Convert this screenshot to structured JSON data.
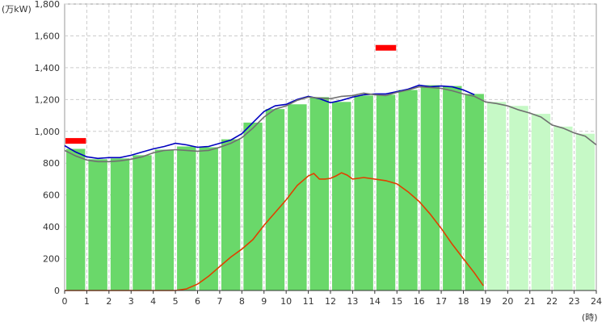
{
  "chart_data": {
    "type": "bar",
    "y_unit_label": "(万kW)",
    "x_unit_label": "(時)",
    "ylim": [
      0,
      1800
    ],
    "xlim": [
      0,
      24
    ],
    "yticks": [
      {
        "value": 0,
        "label": "0"
      },
      {
        "value": 200,
        "label": "200"
      },
      {
        "value": 400,
        "label": "400"
      },
      {
        "value": 600,
        "label": "600"
      },
      {
        "value": 800,
        "label": "800"
      },
      {
        "value": 1000,
        "label": "1,000"
      },
      {
        "value": 1200,
        "label": "1,200"
      },
      {
        "value": 1400,
        "label": "1,400"
      },
      {
        "value": 1600,
        "label": "1,600"
      },
      {
        "value": 1800,
        "label": "1,800"
      }
    ],
    "xticks": [
      "0",
      "1",
      "2",
      "3",
      "4",
      "5",
      "6",
      "7",
      "8",
      "9",
      "10",
      "11",
      "12",
      "13",
      "14",
      "15",
      "16",
      "17",
      "18",
      "19",
      "20",
      "21",
      "22",
      "23",
      "24"
    ],
    "grid": true,
    "legend": "none",
    "hourly_demand": [
      {
        "hour": 0,
        "value": 890,
        "status": "actual"
      },
      {
        "hour": 1,
        "value": 825,
        "status": "actual"
      },
      {
        "hour": 2,
        "value": 830,
        "status": "actual"
      },
      {
        "hour": 3,
        "value": 850,
        "status": "actual"
      },
      {
        "hour": 4,
        "value": 885,
        "status": "actual"
      },
      {
        "hour": 5,
        "value": 905,
        "status": "actual"
      },
      {
        "hour": 6,
        "value": 900,
        "status": "actual"
      },
      {
        "hour": 7,
        "value": 950,
        "status": "actual"
      },
      {
        "hour": 8,
        "value": 1055,
        "status": "actual"
      },
      {
        "hour": 9,
        "value": 1140,
        "status": "actual"
      },
      {
        "hour": 10,
        "value": 1170,
        "status": "actual"
      },
      {
        "hour": 11,
        "value": 1215,
        "status": "actual"
      },
      {
        "hour": 12,
        "value": 1185,
        "status": "actual"
      },
      {
        "hour": 13,
        "value": 1225,
        "status": "actual"
      },
      {
        "hour": 14,
        "value": 1230,
        "status": "actual"
      },
      {
        "hour": 15,
        "value": 1260,
        "status": "actual"
      },
      {
        "hour": 16,
        "value": 1290,
        "status": "actual"
      },
      {
        "hour": 17,
        "value": 1285,
        "status": "actual"
      },
      {
        "hour": 18,
        "value": 1235,
        "status": "actual"
      },
      {
        "hour": 19,
        "value": 1185,
        "status": "forecast"
      },
      {
        "hour": 20,
        "value": 1160,
        "status": "forecast"
      },
      {
        "hour": 21,
        "value": 1110,
        "status": "forecast"
      },
      {
        "hour": 22,
        "value": 1030,
        "status": "forecast"
      },
      {
        "hour": 23,
        "value": 985,
        "status": "forecast"
      }
    ],
    "series": [
      {
        "color": "#0000c0",
        "x": [
          0,
          0.5,
          1,
          1.5,
          2,
          2.5,
          3,
          3.5,
          4,
          4.5,
          5,
          5.5,
          6,
          6.5,
          7,
          7.5,
          8,
          8.5,
          9,
          9.5,
          10,
          10.5,
          11,
          11.5,
          12,
          12.5,
          13,
          13.5,
          14,
          14.5,
          15,
          15.5,
          16,
          16.5,
          17,
          17.5,
          18,
          18.5
        ],
        "y": [
          910,
          870,
          840,
          830,
          835,
          835,
          850,
          870,
          890,
          905,
          925,
          915,
          900,
          905,
          925,
          945,
          985,
          1055,
          1125,
          1160,
          1170,
          1200,
          1220,
          1205,
          1180,
          1195,
          1215,
          1230,
          1235,
          1235,
          1250,
          1265,
          1290,
          1280,
          1285,
          1280,
          1260,
          1230
        ]
      },
      {
        "color": "#707070",
        "x": [
          0,
          0.5,
          1,
          1.5,
          2,
          2.5,
          3,
          3.5,
          4,
          4.5,
          5,
          5.5,
          6,
          6.5,
          7,
          7.5,
          8,
          8.5,
          9,
          9.5,
          10,
          10.5,
          11,
          11.5,
          12,
          12.5,
          13,
          13.5,
          14,
          14.5,
          15,
          15.5,
          16,
          16.5,
          17,
          17.5,
          18,
          18.5,
          19,
          19.5,
          20,
          20.5,
          21,
          21.5,
          22,
          22.5,
          23,
          23.5,
          24
        ],
        "y": [
          880,
          845,
          820,
          810,
          810,
          815,
          825,
          840,
          865,
          880,
          885,
          880,
          875,
          880,
          900,
          925,
          960,
          1020,
          1090,
          1140,
          1160,
          1195,
          1215,
          1210,
          1205,
          1220,
          1225,
          1240,
          1230,
          1225,
          1245,
          1260,
          1280,
          1275,
          1270,
          1255,
          1235,
          1220,
          1185,
          1175,
          1160,
          1135,
          1115,
          1090,
          1040,
          1020,
          990,
          970,
          915
        ]
      },
      {
        "color": "#e04000",
        "x": [
          0,
          1,
          2,
          3,
          4,
          5,
          5.5,
          6,
          6.5,
          7,
          7.5,
          8,
          8.5,
          9,
          9.5,
          10,
          10.5,
          11,
          11.25,
          11.5,
          11.75,
          12,
          12.25,
          12.5,
          12.75,
          13,
          13.5,
          14,
          14.5,
          15,
          15.5,
          16,
          16.5,
          17,
          17.5,
          18,
          18.5,
          18.9
        ],
        "y": [
          0,
          0,
          0,
          0,
          0,
          0,
          10,
          40,
          90,
          150,
          210,
          260,
          320,
          410,
          490,
          570,
          660,
          720,
          735,
          700,
          700,
          705,
          720,
          740,
          725,
          700,
          710,
          700,
          690,
          670,
          620,
          560,
          480,
          390,
          290,
          200,
          110,
          30
        ]
      }
    ],
    "peak_markers": [
      {
        "hour": 0,
        "value": 940
      },
      {
        "hour": 14,
        "value": 1525
      }
    ],
    "colors": {
      "bar_actual": "#6ad86a",
      "bar_forecast": "#c6f9c6",
      "marker": "#ff0000",
      "grid": "#cccccc",
      "axis": "#333333"
    }
  }
}
